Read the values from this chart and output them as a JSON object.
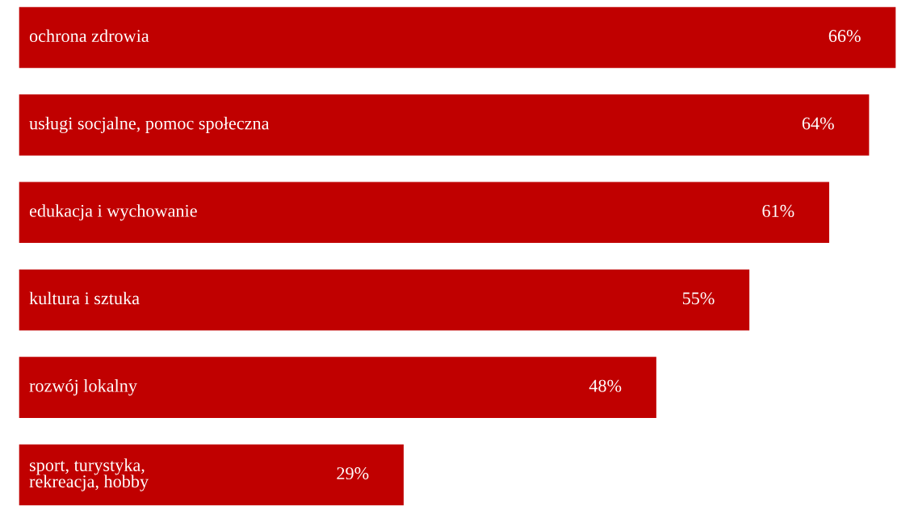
{
  "chart_data": {
    "type": "bar",
    "orientation": "horizontal",
    "categories": [
      "ochrona zdrowia",
      "usługi socjalne, pomoc społeczna",
      "edukacja i wychowanie",
      "kultura i sztuka",
      "rozwój lokalny",
      "sport, turystyka,\nrekreacja, hobby"
    ],
    "values": [
      66,
      64,
      61,
      55,
      48,
      29
    ],
    "value_labels": [
      "66%",
      "64%",
      "61%",
      "55%",
      "48%",
      "29%"
    ],
    "color": "#c00000",
    "legend": false,
    "tick_labels": false
  }
}
